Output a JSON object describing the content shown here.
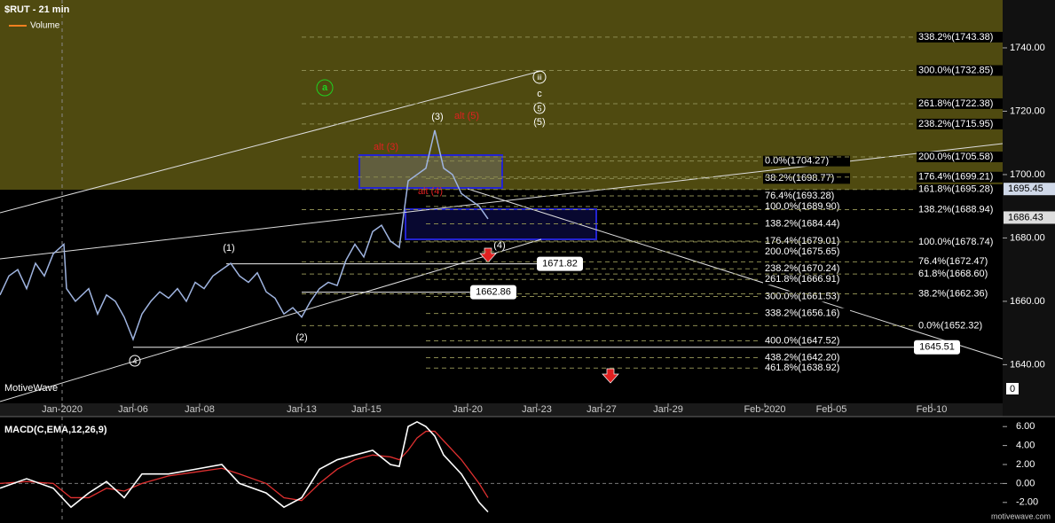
{
  "header": {
    "title": "$RUT - 21 min",
    "legend": "Volume",
    "watermark": "MotiveWave",
    "footer": "motivewave.com"
  },
  "price_panel": {
    "xlim": [
      0,
      113
    ],
    "ylim": [
      1627.8,
      1755.1
    ],
    "yticks": [
      {
        "value": 1640,
        "label": "1640.00"
      },
      {
        "value": 1660,
        "label": "1660.00"
      },
      {
        "value": 1680,
        "label": "1680.00"
      },
      {
        "value": 1700,
        "label": "1700.00"
      },
      {
        "value": 1720,
        "label": "1720.00"
      },
      {
        "value": 1740,
        "label": "1740.00"
      }
    ],
    "xticks": [
      {
        "value": 7,
        "label": "Jan-2020"
      },
      {
        "value": 15,
        "label": "Jan-06"
      },
      {
        "value": 22.5,
        "label": "Jan-08"
      },
      {
        "value": 34,
        "label": "Jan-13"
      },
      {
        "value": 41.3,
        "label": "Jan-15"
      },
      {
        "value": 52.7,
        "label": "Jan-20"
      },
      {
        "value": 60.5,
        "label": "Jan-23"
      },
      {
        "value": 67.8,
        "label": "Jan-27"
      },
      {
        "value": 75.3,
        "label": "Jan-29"
      },
      {
        "value": 86.2,
        "label": "Feb-2020"
      },
      {
        "value": 93.7,
        "label": "Feb-05"
      },
      {
        "value": 105,
        "label": "Feb-10"
      }
    ],
    "close": {
      "x": [
        0,
        1,
        2,
        3,
        4,
        5,
        6,
        7.2,
        7.5,
        8.5,
        10,
        11,
        12,
        13,
        14,
        15,
        16,
        17,
        18,
        19,
        20,
        21,
        22,
        23,
        24,
        25,
        26,
        27,
        28,
        29,
        30,
        31,
        32,
        33,
        34,
        35,
        36,
        37,
        38,
        39,
        40,
        41,
        42,
        43,
        44,
        45,
        46,
        47,
        48,
        49,
        50,
        51,
        52,
        53,
        54,
        55
      ],
      "values": [
        1662,
        1668,
        1670,
        1664,
        1672,
        1668,
        1675,
        1678,
        1664,
        1660,
        1664,
        1656,
        1662,
        1660,
        1655,
        1648,
        1656,
        1660,
        1663,
        1661,
        1664,
        1660,
        1666,
        1664,
        1668,
        1670,
        1672,
        1668,
        1666,
        1669,
        1663,
        1661,
        1656,
        1658,
        1655,
        1660,
        1664,
        1666,
        1665,
        1673,
        1678,
        1674,
        1682,
        1684,
        1679,
        1677,
        1698,
        1700,
        1702,
        1714,
        1702,
        1700,
        1694,
        1692,
        1690,
        1686
      ]
    },
    "fib_right": [
      {
        "value": 1743.38,
        "label": "338.2%(1743.38)"
      },
      {
        "value": 1732.85,
        "label": "300.0%(1732.85)"
      },
      {
        "value": 1722.38,
        "label": "261.8%(1722.38)"
      },
      {
        "value": 1715.95,
        "label": "238.2%(1715.95)"
      },
      {
        "value": 1705.58,
        "label": "200.0%(1705.58)"
      },
      {
        "value": 1699.21,
        "label": "176.4%(1699.21)"
      },
      {
        "value": 1695.28,
        "label": "161.8%(1695.28)"
      },
      {
        "value": 1688.94,
        "label": "138.2%(1688.94)"
      },
      {
        "value": 1678.74,
        "label": "100.0%(1678.74)"
      },
      {
        "value": 1672.47,
        "label": "76.4%(1672.47)"
      },
      {
        "value": 1668.6,
        "label": "61.8%(1668.60)"
      },
      {
        "value": 1662.36,
        "label": "38.2%(1662.36)"
      },
      {
        "value": 1652.32,
        "label": "0.0%(1652.32)"
      }
    ],
    "fib_mid": [
      {
        "value": 1704.27,
        "label": "0.0%(1704.27)"
      },
      {
        "value": 1698.77,
        "label": "38.2%(1698.77)"
      },
      {
        "value": 1693.28,
        "label": "76.4%(1693.28)"
      },
      {
        "value": 1689.9,
        "label": "100.0%(1689.90)"
      },
      {
        "value": 1684.44,
        "label": "138.2%(1684.44)"
      },
      {
        "value": 1679.01,
        "label": "176.4%(1679.01)"
      },
      {
        "value": 1675.65,
        "label": "200.0%(1675.65)"
      },
      {
        "value": 1670.24,
        "label": "238.2%(1670.24)"
      },
      {
        "value": 1666.91,
        "label": "261.8%(1666.91)"
      },
      {
        "value": 1661.53,
        "label": "300.0%(1661.53)"
      },
      {
        "value": 1656.16,
        "label": "338.2%(1656.16)"
      },
      {
        "value": 1647.52,
        "label": "400.0%(1647.52)"
      },
      {
        "value": 1642.2,
        "label": "438.2%(1642.20)"
      },
      {
        "value": 1638.92,
        "label": "461.8%(1638.92)"
      }
    ],
    "price_boxes": [
      1671.82,
      1662.86,
      1645.51
    ],
    "axis_prices": [
      1695.45,
      1686.43
    ],
    "volume_axis": 0
  },
  "wave_labels": [
    "(1)",
    "(2)",
    "(3)",
    "(4)",
    "4",
    "alt (3)",
    "alt (4)",
    "alt (5)",
    "iii",
    "c",
    "5",
    "(5)",
    "a"
  ],
  "macd": {
    "title": "MACD(C,EMA,12,26,9)",
    "ylim": [
      -3.7,
      6.86
    ],
    "yticks": [
      {
        "value": -2,
        "label": "-2.00"
      },
      {
        "value": 0,
        "label": "0.00"
      },
      {
        "value": 2,
        "label": "2.00"
      },
      {
        "value": 4,
        "label": "4.00"
      },
      {
        "value": 6,
        "label": "6.00"
      }
    ],
    "x": [
      0,
      3,
      6,
      8,
      10,
      12,
      14,
      16,
      19,
      22,
      25,
      27,
      30,
      32,
      34,
      36,
      38,
      40,
      42,
      44,
      45,
      46,
      47,
      48,
      49,
      50,
      52,
      54,
      55
    ],
    "macd": [
      -0.5,
      0.5,
      -0.5,
      -2.5,
      -1,
      0.2,
      -1.5,
      1,
      1,
      1.5,
      2,
      0,
      -1,
      -2.5,
      -1.5,
      1.5,
      2.5,
      3,
      3.5,
      2,
      1.8,
      6,
      6.5,
      6,
      5,
      3,
      1,
      -2,
      -3
    ],
    "signal": [
      0,
      0.2,
      0,
      -1.5,
      -1.5,
      -0.5,
      -0.8,
      0,
      0.8,
      1.2,
      1.6,
      1,
      0,
      -1.5,
      -1.8,
      0,
      1.5,
      2.5,
      3,
      2.8,
      2.5,
      3.5,
      4.8,
      5.5,
      5.5,
      4.5,
      2.5,
      0,
      -1.5
    ]
  }
}
